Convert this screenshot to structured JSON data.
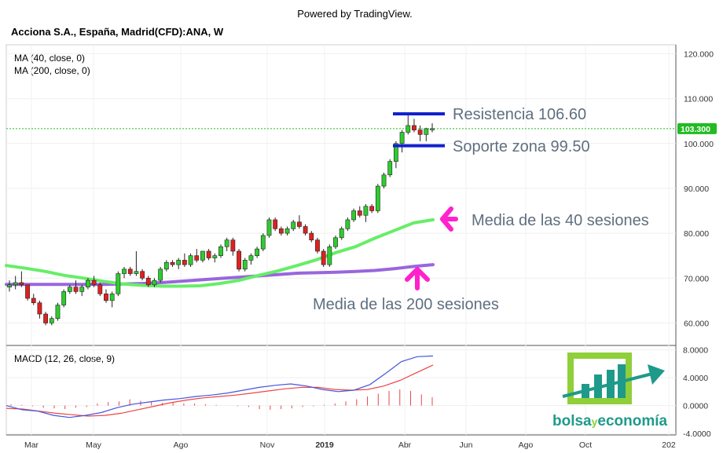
{
  "header": {
    "powered_by": "Powered by TradingView.",
    "title": "Acciona S.A., España, Madrid(CFD):ANA, W",
    "ma40_label": "MA (40, close, 0)",
    "ma200_label": "MA (200, close, 0)",
    "macd_label": "MACD (12, 26, close, 9)"
  },
  "colors": {
    "up": "#2ecc2e",
    "down": "#e02020",
    "ma40": "#66ee66",
    "ma200": "#9966dd",
    "macd": "#4455dd",
    "signal": "#ee4444",
    "annotation_line": "#1122cc",
    "arrow": "#ff22cc",
    "last_price": "#22bb22"
  },
  "annotations": {
    "resistance": "Resistencia 106.60",
    "support": "Soporte zona 99.50",
    "ma40_text": "Media de las 40 sesiones",
    "ma200_text": "Media de las 200 sesiones"
  },
  "logo": {
    "part1": "bolsa",
    "part2": "y",
    "part3": "economía"
  },
  "chart_data": [
    {
      "type": "candlestick",
      "title": "Acciona S.A., España, Madrid(CFD):ANA, W",
      "last_price": "103.300",
      "y_ticks": [
        "120.000",
        "110.000",
        "100.000",
        "90.000",
        "80.000",
        "70.000",
        "60.000"
      ],
      "ylim": [
        55,
        122
      ],
      "x_ticks": [
        "Mar",
        "May",
        "Ago",
        "Nov",
        "2019",
        "Abr",
        "Jun",
        "Ago",
        "Oct",
        "202"
      ],
      "resistance": 106.6,
      "support": 99.5,
      "candles": [
        [
          68.0,
          69.5,
          67.0,
          68.5
        ],
        [
          68.5,
          70.5,
          67.5,
          69.0
        ],
        [
          69.0,
          71.5,
          68.0,
          68.5
        ],
        [
          68.5,
          68.5,
          65.0,
          65.5
        ],
        [
          65.5,
          66.5,
          64.0,
          64.5
        ],
        [
          64.5,
          65.0,
          61.0,
          62.0
        ],
        [
          62.0,
          62.5,
          59.5,
          60.0
        ],
        [
          60.0,
          61.5,
          59.5,
          61.0
        ],
        [
          61.0,
          64.5,
          60.5,
          64.0
        ],
        [
          64.0,
          67.5,
          63.5,
          67.0
        ],
        [
          67.0,
          68.5,
          66.5,
          68.0
        ],
        [
          68.0,
          69.5,
          66.5,
          67.0
        ],
        [
          67.0,
          68.5,
          66.0,
          68.0
        ],
        [
          68.0,
          70.0,
          67.5,
          69.5
        ],
        [
          69.5,
          70.5,
          68.0,
          68.5
        ],
        [
          68.5,
          69.0,
          66.0,
          66.5
        ],
        [
          66.5,
          67.5,
          64.5,
          65.0
        ],
        [
          65.0,
          67.0,
          63.5,
          66.5
        ],
        [
          66.5,
          71.5,
          66.0,
          71.0
        ],
        [
          71.0,
          72.5,
          70.0,
          72.0
        ],
        [
          72.0,
          72.5,
          70.5,
          71.0
        ],
        [
          71.0,
          76.0,
          70.5,
          71.5
        ],
        [
          71.5,
          72.0,
          69.5,
          70.0
        ],
        [
          70.0,
          70.5,
          68.0,
          68.5
        ],
        [
          68.5,
          70.0,
          68.0,
          69.5
        ],
        [
          69.5,
          72.5,
          69.0,
          72.0
        ],
        [
          72.0,
          74.0,
          71.5,
          73.5
        ],
        [
          73.5,
          74.0,
          72.5,
          73.0
        ],
        [
          73.0,
          74.5,
          72.0,
          74.0
        ],
        [
          74.0,
          75.5,
          72.5,
          73.0
        ],
        [
          73.0,
          75.5,
          72.5,
          75.0
        ],
        [
          75.0,
          76.5,
          73.5,
          74.0
        ],
        [
          74.0,
          76.0,
          73.5,
          76.0
        ],
        [
          76.0,
          76.5,
          74.0,
          74.5
        ],
        [
          74.5,
          75.5,
          73.5,
          75.0
        ],
        [
          75.0,
          77.5,
          74.5,
          77.0
        ],
        [
          77.0,
          79.0,
          76.0,
          78.5
        ],
        [
          78.5,
          79.0,
          75.0,
          76.0
        ],
        [
          76.0,
          76.5,
          71.5,
          72.0
        ],
        [
          72.0,
          74.5,
          71.5,
          74.0
        ],
        [
          74.0,
          75.5,
          73.0,
          75.0
        ],
        [
          75.0,
          77.0,
          74.5,
          76.5
        ],
        [
          76.5,
          80.0,
          76.0,
          79.5
        ],
        [
          79.5,
          83.5,
          79.0,
          83.0
        ],
        [
          83.0,
          83.5,
          80.5,
          81.0
        ],
        [
          81.0,
          81.5,
          79.5,
          80.0
        ],
        [
          80.0,
          81.5,
          79.5,
          81.0
        ],
        [
          81.0,
          83.0,
          80.5,
          82.5
        ],
        [
          82.5,
          84.0,
          81.0,
          81.5
        ],
        [
          81.5,
          82.0,
          79.5,
          80.0
        ],
        [
          80.0,
          80.5,
          78.0,
          78.5
        ],
        [
          78.5,
          79.0,
          75.5,
          76.0
        ],
        [
          76.0,
          76.5,
          72.5,
          73.0
        ],
        [
          73.0,
          77.5,
          72.5,
          77.0
        ],
        [
          77.0,
          79.5,
          76.5,
          79.0
        ],
        [
          79.0,
          81.5,
          78.5,
          81.0
        ],
        [
          81.0,
          83.5,
          80.5,
          83.0
        ],
        [
          83.0,
          85.5,
          82.5,
          85.0
        ],
        [
          85.0,
          86.0,
          83.5,
          84.0
        ],
        [
          84.0,
          86.5,
          82.5,
          86.0
        ],
        [
          86.0,
          86.5,
          84.5,
          85.0
        ],
        [
          85.0,
          91.0,
          84.5,
          90.5
        ],
        [
          90.5,
          93.5,
          90.0,
          93.0
        ],
        [
          93.0,
          96.5,
          92.5,
          96.0
        ],
        [
          96.0,
          100.5,
          94.5,
          100.0
        ],
        [
          100.0,
          103.0,
          98.0,
          102.5
        ],
        [
          102.5,
          106.6,
          102.0,
          104.0
        ],
        [
          104.0,
          105.5,
          102.5,
          103.0
        ],
        [
          103.0,
          104.0,
          100.5,
          102.0
        ],
        [
          102.0,
          103.5,
          100.5,
          103.3
        ],
        [
          103.3,
          104.5,
          102.5,
          103.3
        ]
      ],
      "series": [
        {
          "name": "MA (40, close, 0)",
          "values": [
            72.8,
            72.2,
            71.5,
            70.6,
            70.0,
            69.3,
            68.7,
            68.4,
            68.2,
            68.2,
            68.3,
            68.8,
            69.5,
            70.6,
            71.6,
            72.8,
            74.1,
            75.7,
            77.0,
            78.9,
            80.6,
            82.3,
            83.0
          ]
        },
        {
          "name": "MA (200, close, 0)",
          "values": [
            68.6,
            68.6,
            68.6,
            68.6,
            68.6,
            68.6,
            68.7,
            68.8,
            69.0,
            69.3,
            69.6,
            69.9,
            70.2,
            70.5,
            70.8,
            71.1,
            71.2,
            71.3,
            71.5,
            71.7,
            72.1,
            72.6,
            73.0
          ]
        }
      ]
    },
    {
      "type": "line",
      "title": "MACD (12, 26, close, 9)",
      "y_ticks": [
        "8.0000",
        "4.0000",
        "0.0000",
        "-4.0000"
      ],
      "ylim": [
        -4.2,
        8.6
      ],
      "series": [
        {
          "name": "MACD",
          "values": [
            0.0,
            -0.6,
            -0.8,
            -1.4,
            -1.7,
            -1.4,
            -1.0,
            -0.3,
            0.2,
            0.5,
            0.8,
            1.0,
            1.3,
            1.5,
            1.8,
            2.2,
            2.6,
            2.9,
            3.1,
            2.8,
            2.3,
            2.0,
            2.2,
            3.0,
            4.6,
            6.3,
            7.0,
            7.1
          ]
        },
        {
          "name": "Signal",
          "values": [
            -0.4,
            -0.5,
            -0.8,
            -1.1,
            -1.3,
            -1.5,
            -1.4,
            -1.1,
            -0.6,
            -0.1,
            0.4,
            0.8,
            1.1,
            1.3,
            1.5,
            1.8,
            2.1,
            2.4,
            2.6,
            2.6,
            2.3,
            2.2,
            2.3,
            2.8,
            3.6,
            4.7,
            5.8
          ]
        }
      ],
      "histogram": [
        0.2,
        0.1,
        -0.1,
        -0.3,
        -0.4,
        -0.5,
        -0.3,
        -0.2,
        0.3,
        0.5,
        0.6,
        0.9,
        0.7,
        0.6,
        0.4,
        0.4,
        0.3,
        0.3,
        0.2,
        0.1,
        0.0,
        -0.1,
        -0.2,
        -0.5,
        -0.6,
        -0.5,
        -0.4,
        -0.2,
        -0.1,
        0.1,
        0.3,
        0.6,
        0.9,
        1.3,
        1.7,
        2.1,
        2.3,
        2.1,
        1.6,
        1.2
      ]
    }
  ]
}
